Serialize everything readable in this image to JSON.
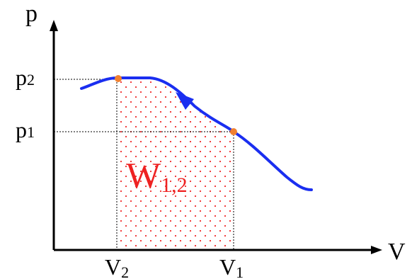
{
  "diagram": {
    "axes": {
      "y_label": "p",
      "x_label": "V"
    },
    "pressure_labels": {
      "p2": {
        "base": "p",
        "sub": "2"
      },
      "p1": {
        "base": "p",
        "sub": "1"
      }
    },
    "volume_labels": {
      "v2": {
        "base": "V",
        "sub": "2"
      },
      "v1": {
        "base": "V",
        "sub": "1"
      }
    },
    "work_label": {
      "base": "W",
      "sub": "1,2"
    },
    "colors": {
      "curve": "#1a2ef0",
      "points": "#f08030",
      "work_area_dots": "#ee2a2a",
      "work_label": "#ee2222",
      "axes": "#000000"
    }
  }
}
